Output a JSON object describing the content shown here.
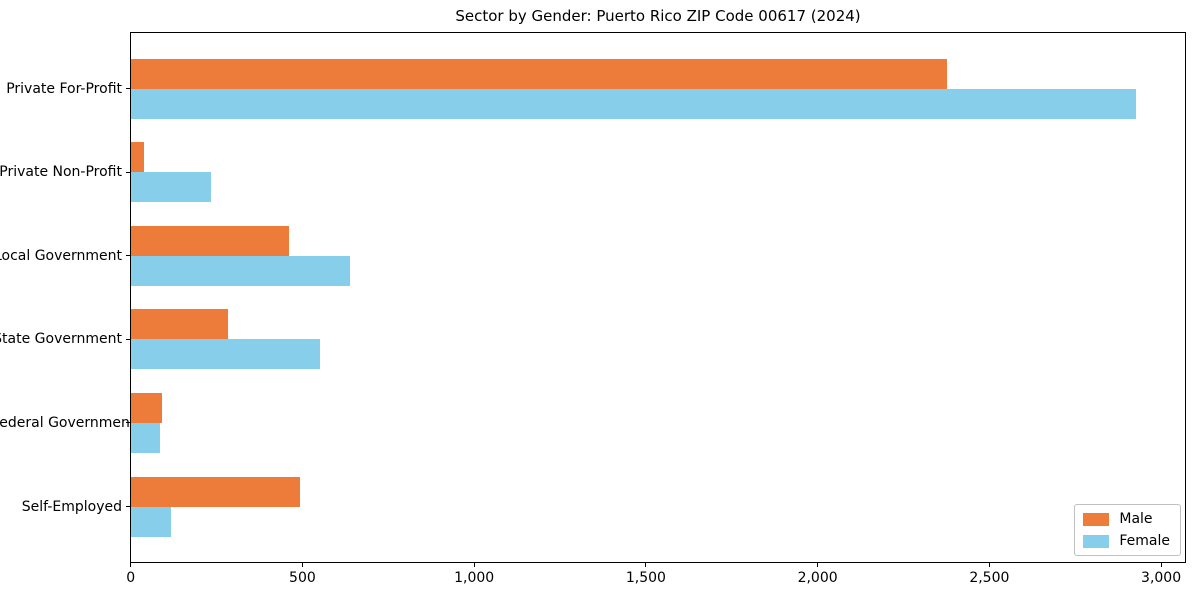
{
  "title": "Sector by Gender: Puerto Rico ZIP Code 00617 (2024)",
  "chart_data": {
    "type": "bar",
    "orientation": "horizontal",
    "title": "Sector by Gender: Puerto Rico ZIP Code 00617 (2024)",
    "categories": [
      "Private For-Profit",
      "Private Non-Profit",
      "Local Government",
      "State Government",
      "Federal Government",
      "Self-Employed"
    ],
    "series": [
      {
        "name": "Male",
        "color": "#ED7C3B",
        "values": [
          2375,
          37,
          459,
          283,
          91,
          492
        ]
      },
      {
        "name": "Female",
        "color": "#87CEEB",
        "values": [
          2925,
          233,
          638,
          550,
          85,
          117
        ]
      }
    ],
    "xlim": [
      0,
      3000
    ],
    "x_ticks": [
      0,
      500,
      1000,
      1500,
      2000,
      2500,
      3000
    ],
    "x_tick_labels": [
      "0",
      "500",
      "1,000",
      "1,500",
      "2,000",
      "2,500",
      "3,000"
    ],
    "xlabel": "",
    "ylabel": "",
    "grid": false,
    "legend_position": "lower right"
  }
}
